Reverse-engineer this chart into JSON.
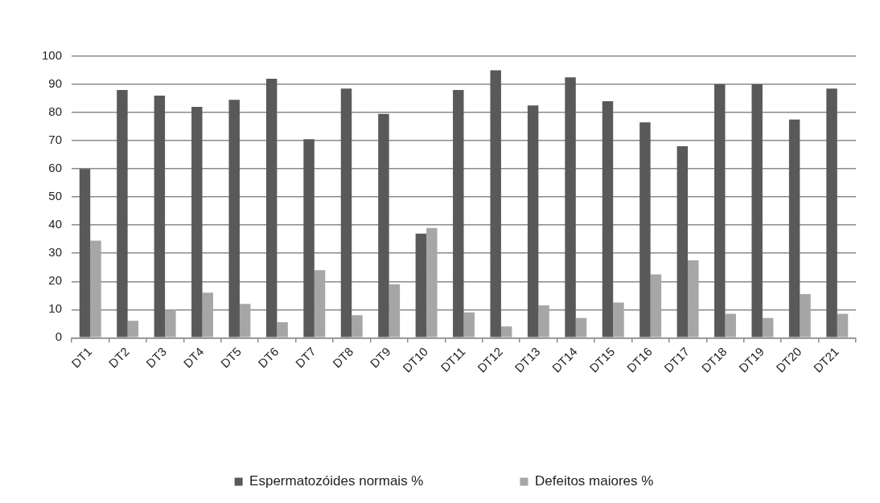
{
  "chart_data": {
    "type": "bar",
    "categories": [
      "DT1",
      "DT2",
      "DT3",
      "DT4",
      "DT5",
      "DT6",
      "DT7",
      "DT8",
      "DT9",
      "DT10",
      "DT11",
      "DT12",
      "DT13",
      "DT14",
      "DT15",
      "DT16",
      "DT17",
      "DT18",
      "DT19",
      "DT20",
      "DT21"
    ],
    "series": [
      {
        "name": "Espermatozóides normais %",
        "color": "#595959",
        "values": [
          60,
          88,
          86,
          82,
          84.5,
          92,
          70.5,
          88.5,
          79.5,
          37,
          88,
          95,
          82.5,
          92.5,
          84,
          76.5,
          68,
          90,
          90,
          77.5,
          88.5
        ]
      },
      {
        "name": "Defeitos maiores %",
        "color": "#a6a6a6",
        "values": [
          34.5,
          6,
          10,
          16,
          12,
          5.5,
          24,
          8,
          19,
          39,
          9,
          4,
          11.5,
          7,
          12.5,
          22.5,
          27.5,
          8.5,
          7,
          15.5,
          8.5
        ]
      }
    ],
    "ylim": [
      0,
      100
    ],
    "yticks": [
      0,
      10,
      20,
      30,
      40,
      50,
      60,
      70,
      80,
      90,
      100
    ],
    "grid": "y",
    "legend": "bottom"
  }
}
